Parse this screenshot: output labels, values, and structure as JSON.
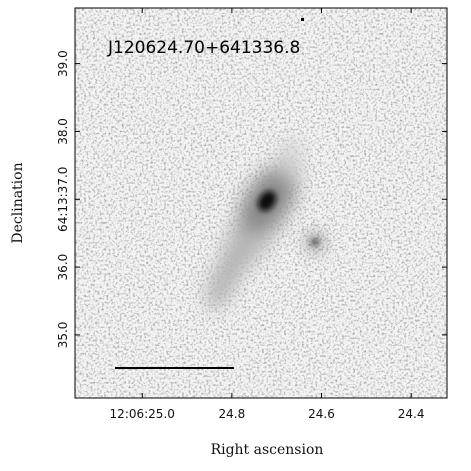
{
  "chart_data": {
    "type": "image",
    "annotation": "J120624.70+641336.8",
    "xlabel": "Right ascension",
    "ylabel": "Declination",
    "xlim": [
      25.15,
      24.32
    ],
    "ylim": [
      34.07,
      39.82
    ],
    "xticks": [
      {
        "value": 25.0,
        "label": "12:06:25.0"
      },
      {
        "value": 24.8,
        "label": "24.8"
      },
      {
        "value": 24.6,
        "label": "24.6"
      },
      {
        "value": 24.4,
        "label": "24.4"
      }
    ],
    "yticks": [
      {
        "value": 39.0,
        "label": "39.0"
      },
      {
        "value": 38.0,
        "label": "38.0"
      },
      {
        "value": 37.0,
        "label": "64:13:37.0"
      },
      {
        "value": 36.0,
        "label": "36.0"
      },
      {
        "value": 35.0,
        "label": "35.0"
      }
    ]
  }
}
